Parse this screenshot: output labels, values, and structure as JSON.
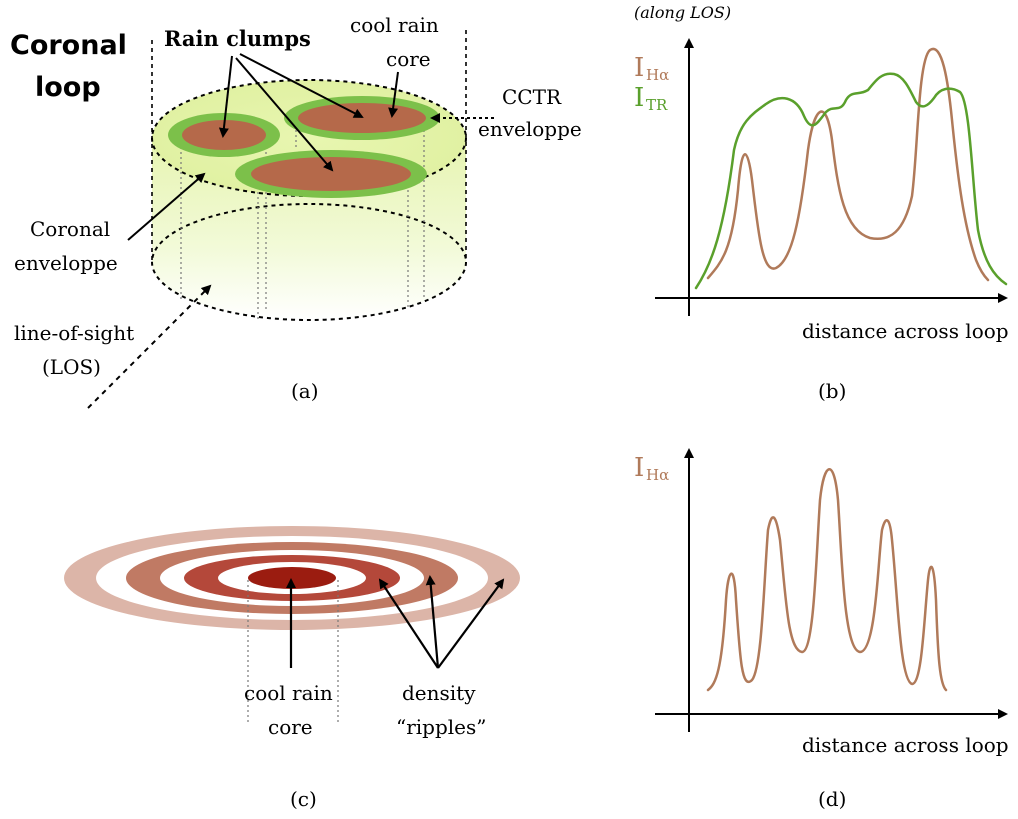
{
  "panel_a": {
    "title_line1": "Coronal",
    "title_line2": "loop",
    "rain_clumps": "Rain clumps",
    "cool_rain_line1": "cool rain",
    "cool_rain_line2": "core",
    "cctr_line1": "CCTR",
    "cctr_line2": "enveloppe",
    "coronal_env_line1": "Coronal",
    "coronal_env_line2": "enveloppe",
    "los_line1": "line-of-sight",
    "los_line2": "(LOS)",
    "label": "(a)"
  },
  "panel_b": {
    "along_los": "(along LOS)",
    "i_main": "I",
    "i_halpha_sub": "Hα",
    "i_tr_sub": "TR",
    "xlabel": "distance across loop",
    "label": "(b)"
  },
  "panel_c": {
    "core_line1": "cool rain",
    "core_line2": "core",
    "density_line1": "density",
    "density_line2": "“ripples”",
    "label": "(c)"
  },
  "panel_d": {
    "i_main": "I",
    "i_halpha_sub": "Hα",
    "xlabel": "distance across loop",
    "label": "(d)"
  },
  "colors": {
    "halpha": "#b07a5a",
    "tr": "#5aa02c",
    "clump_core": "#b5694a",
    "clump_rim": "#7cc04a",
    "coronal_fill": "#eef8c8",
    "ripple_dark": "#9b1c10",
    "ripple_mid": "#b8543e",
    "ripple_light": "#dcb5a8"
  }
}
